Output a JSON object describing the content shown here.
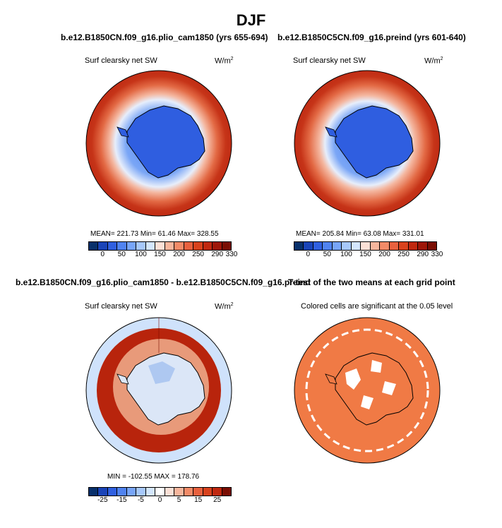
{
  "season": "DJF",
  "panel_titles": {
    "top_left": "b.e12.B1850CN.f09_g16.plio_cam1850 (yrs 655-694)",
    "top_right": "b.e12.B1850C5CN.f09_g16.preind (yrs 601-640)",
    "bottom_left": "b.e12.B1850CN.f09_g16.plio_cam1850 - b.e12.B1850C5CN.f09_g16.preind",
    "bottom_right": "T-test of the two means at each grid point"
  },
  "variable": "Surf clearsky net SW",
  "units": "W/m",
  "units_sup": "2",
  "significance_note": "Colored cells are significant at the 0.05 level",
  "stats": {
    "top_left": "MEAN= 221.73   Min=  61.46   Max= 328.55",
    "top_right": "MEAN= 205.84   Min=  63.08   Max= 331.01",
    "diff": "MIN = -102.55  MAX = 178.76"
  },
  "colorbars": {
    "abs": {
      "ticks": [
        "0",
        "50",
        "100",
        "150",
        "200",
        "250",
        "290",
        "330"
      ],
      "colors": [
        "#08306b",
        "#1a44b8",
        "#3060e0",
        "#5083f0",
        "#78a5f8",
        "#a7c8fb",
        "#d4e6fd",
        "#fbe0d6",
        "#f7b69d",
        "#f28b68",
        "#e8613e",
        "#d8421d",
        "#c0280f",
        "#9e1608",
        "#7a0e03"
      ]
    },
    "diff": {
      "ticks": [
        "-25",
        "-15",
        "-5",
        "0",
        "5",
        "15",
        "25"
      ],
      "colors": [
        "#08306b",
        "#1a44b8",
        "#3060e0",
        "#5083f0",
        "#78a5f8",
        "#a7c8fb",
        "#d4e6fd",
        "#ffffff",
        "#fbe0d6",
        "#f7b69d",
        "#f28b68",
        "#e8613e",
        "#d8421d",
        "#c0280f",
        "#7a0e03"
      ]
    }
  },
  "map_colors": {
    "ocean_abs": "#c63418",
    "ice_abs": "#2f5ee0",
    "diff_ocean": "#cfe2fb",
    "diff_ring": "#b8240c",
    "ttest": "#f07a45"
  }
}
